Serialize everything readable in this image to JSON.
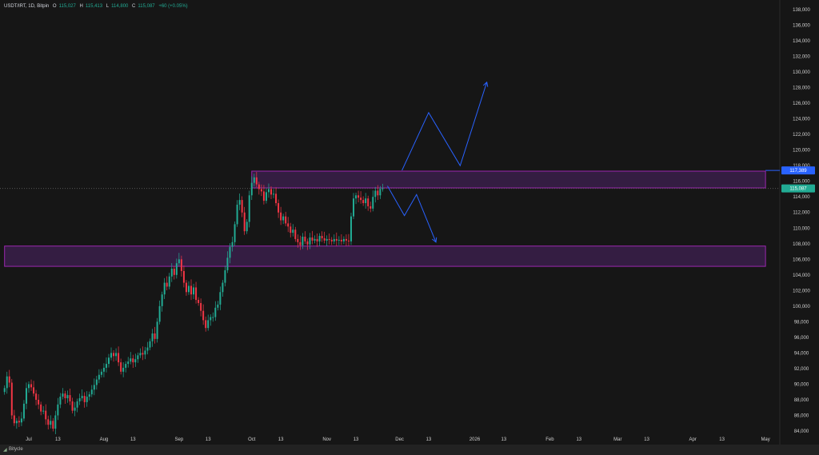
{
  "header": {
    "symbol": "USDT/IRT, 1D, Bitpin",
    "o_label": "O",
    "o": "115,027",
    "h_label": "H",
    "h": "115,413",
    "l_label": "L",
    "l": "114,800",
    "c_label": "C",
    "c": "115,087",
    "change": "+60 (+0.05%)"
  },
  "footer": {
    "brand": "Bitycle",
    "icon": "bitycle-logo-icon"
  },
  "colors": {
    "up": "#22ab94",
    "down": "#f23645",
    "zone_fill": "#3a1f4a",
    "zone_border": "#9c27b0",
    "projection": "#2962ff",
    "bg": "#161616"
  },
  "chart_data": {
    "type": "candlestick",
    "start_date": "2025-06-21",
    "interval": "1D",
    "closes": [
      89.5,
      91,
      90.2,
      86,
      85,
      85.3,
      85.1,
      85.6,
      87.5,
      89.5,
      90,
      89.6,
      88.8,
      88,
      87.4,
      86.5,
      86.6,
      85.5,
      84.8,
      85.3,
      84.3,
      86,
      87.4,
      88.4,
      88.8,
      88.2,
      88.6,
      87.8,
      86.6,
      87,
      87.8,
      88.2,
      88.5,
      87.7,
      88.4,
      88.7,
      89.3,
      89.9,
      90.6,
      91.2,
      91.6,
      92.1,
      92.6,
      93.4,
      94,
      93.6,
      94,
      92.8,
      91.6,
      92.1,
      92.6,
      92.9,
      93.3,
      92.8,
      93.2,
      93.7,
      94,
      93.8,
      94.3,
      94.7,
      95.5,
      96.5,
      95.8,
      98,
      100,
      101.5,
      103,
      102.5,
      103.8,
      104.8,
      104,
      105.5,
      106,
      104.5,
      103,
      101.8,
      102.6,
      101.5,
      102.4,
      100.8,
      100.4,
      99.4,
      98.2,
      97.2,
      98.2,
      98.6,
      98.6,
      99.8,
      100.2,
      101.8,
      103,
      104.6,
      106.2,
      107.6,
      108.2,
      110.5,
      113,
      113.6,
      112,
      109.6,
      110.8,
      114.2,
      115.8,
      116.5,
      115.6,
      115,
      114.7,
      113.5,
      114.6,
      115,
      114.3,
      114.4,
      113.2,
      112,
      111,
      111.5,
      110.6,
      110.2,
      109.4,
      109.8,
      108.6,
      108.2,
      107.8,
      108.9,
      108.3,
      107.9,
      108.8,
      108.4,
      108.6,
      108.3,
      109,
      108.7,
      108.4,
      108.6,
      108.5,
      108.3,
      108.6,
      108.4,
      108.5,
      108.3,
      108.6,
      108.4,
      108.3,
      111.5,
      113.8,
      114.2,
      113.9,
      113.6,
      113.2,
      113.8,
      112.8,
      112.5,
      114,
      114.8,
      114.2,
      115.027,
      115.087
    ],
    "close_unit": "thousand IRT",
    "y_ticks": [
      "84,000",
      "86,000",
      "88,000",
      "90,000",
      "92,000",
      "94,000",
      "96,000",
      "98,000",
      "100,000",
      "102,000",
      "104,000",
      "106,000",
      "108,000",
      "110,000",
      "112,000",
      "114,000",
      "116,000",
      "118,000",
      "120,000",
      "122,000",
      "124,000",
      "126,000",
      "128,000",
      "130,000",
      "132,000",
      "134,000",
      "136,000",
      "138,000"
    ],
    "ylim": [
      84000,
      138000
    ],
    "x_ticks": [
      {
        "label": "Jul",
        "date": "2025-07-01"
      },
      {
        "label": "13",
        "date": "2025-07-13"
      },
      {
        "label": "Aug",
        "date": "2025-08-01"
      },
      {
        "label": "13",
        "date": "2025-08-13"
      },
      {
        "label": "Sep",
        "date": "2025-09-01"
      },
      {
        "label": "13",
        "date": "2025-09-13"
      },
      {
        "label": "Oct",
        "date": "2025-10-01"
      },
      {
        "label": "13",
        "date": "2025-10-13"
      },
      {
        "label": "Nov",
        "date": "2025-11-01"
      },
      {
        "label": "13",
        "date": "2025-11-13"
      },
      {
        "label": "Dec",
        "date": "2025-12-01"
      },
      {
        "label": "13",
        "date": "2025-12-13"
      },
      {
        "label": "2026",
        "date": "2026-01-01"
      },
      {
        "label": "13",
        "date": "2026-01-13"
      },
      {
        "label": "Feb",
        "date": "2026-02-01"
      },
      {
        "label": "13",
        "date": "2026-02-13"
      },
      {
        "label": "Mar",
        "date": "2026-03-01"
      },
      {
        "label": "13",
        "date": "2026-03-13"
      },
      {
        "label": "Apr",
        "date": "2026-04-01"
      },
      {
        "label": "13",
        "date": "2026-04-13"
      },
      {
        "label": "May",
        "date": "2026-05-01"
      }
    ],
    "zones": [
      {
        "from_date": "2025-10-01",
        "to_date": "2026-05-01",
        "low": 115150,
        "high": 117300
      },
      {
        "from_date": "2025-06-21",
        "to_date": "2026-05-01",
        "low": 105100,
        "high": 107700
      }
    ],
    "price_labels": [
      {
        "value": 117389,
        "text": "117,389",
        "color": "#2962ff"
      },
      {
        "value": 115087,
        "text": "115,087",
        "color": "#22ab94"
      }
    ],
    "projections": [
      {
        "points": [
          [
            "2025-12-02",
            117400
          ],
          [
            "2025-12-13",
            124800
          ],
          [
            "2025-12-26",
            118000
          ],
          [
            "2026-01-06",
            128700
          ]
        ]
      },
      {
        "points": [
          [
            "2025-11-26",
            115400
          ],
          [
            "2025-12-03",
            111600
          ],
          [
            "2025-12-08",
            114300
          ],
          [
            "2025-12-16",
            108200
          ]
        ]
      }
    ]
  }
}
